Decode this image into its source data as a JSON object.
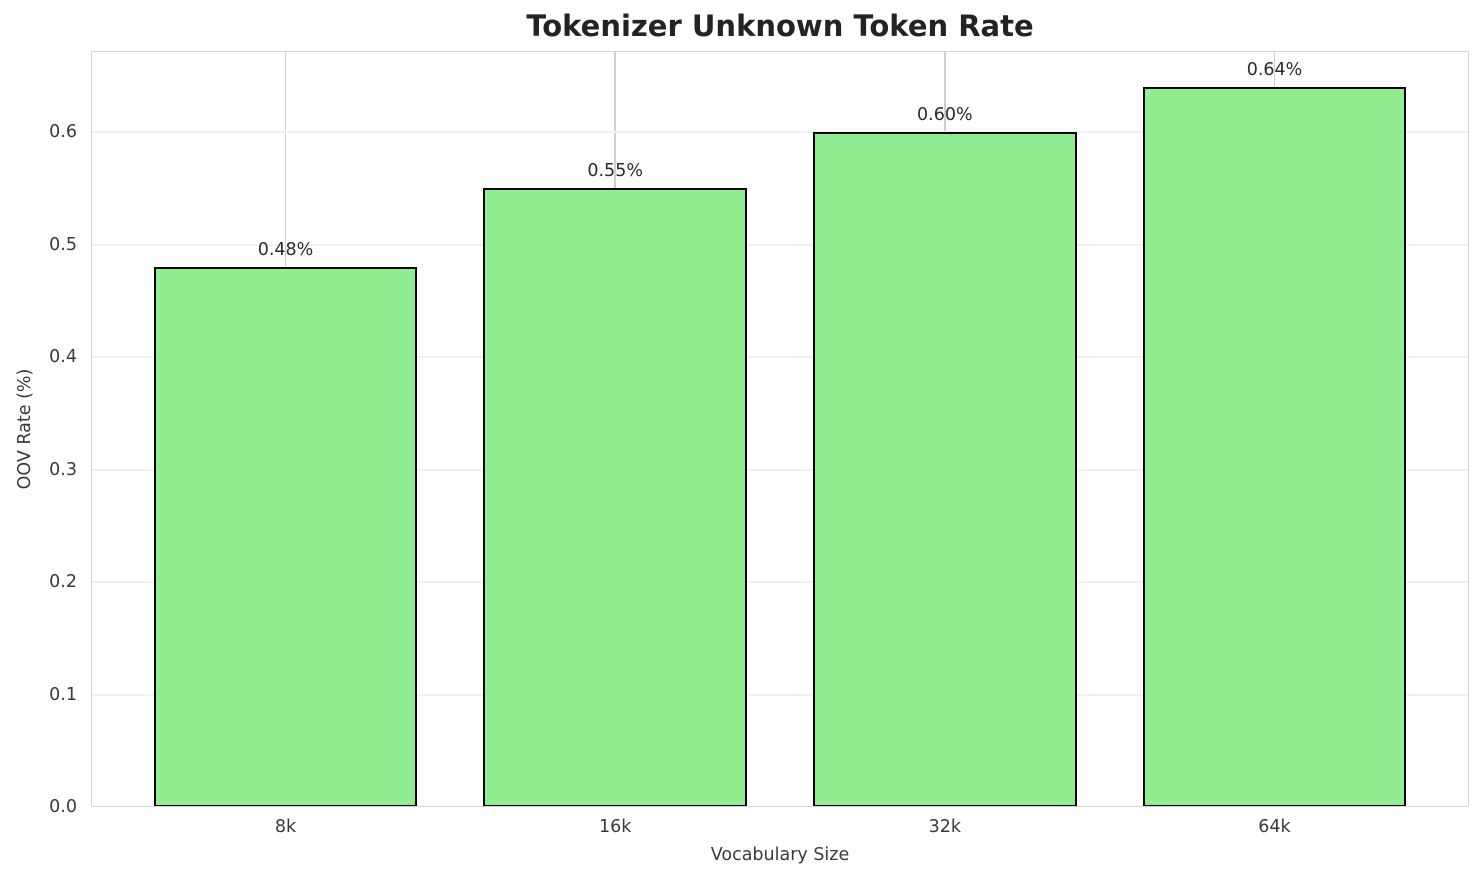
{
  "chart_data": {
    "type": "bar",
    "title": "Tokenizer Unknown Token Rate",
    "xlabel": "Vocabulary Size",
    "ylabel": "OOV Rate (%)",
    "categories": [
      "8k",
      "16k",
      "32k",
      "64k"
    ],
    "values": [
      0.48,
      0.55,
      0.6,
      0.64
    ],
    "bar_labels": [
      "0.48%",
      "0.55%",
      "0.60%",
      "0.64%"
    ],
    "ylim": [
      0,
      0.672
    ],
    "yticks": [
      0.0,
      0.1,
      0.2,
      0.3,
      0.4,
      0.5,
      0.6
    ],
    "ytick_labels": [
      "0.0",
      "0.1",
      "0.2",
      "0.3",
      "0.4",
      "0.5",
      "0.6"
    ],
    "grid": "on",
    "legend_position": "none",
    "colors": {
      "bar_fill": "#90ee90",
      "bar_edge": "#000000",
      "h_gridline": "#f1f1f1",
      "v_gridline": "#cfcfcf",
      "spine": "#d4d4d4",
      "title_text": "#232323",
      "tick_text": "#3a3a3a"
    }
  }
}
